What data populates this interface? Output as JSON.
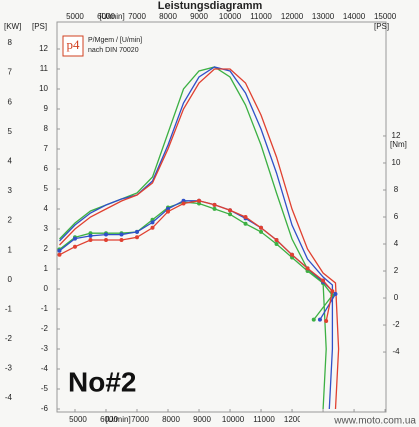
{
  "chart_data": {
    "type": "line",
    "title": "Leistungsdiagramm",
    "x_label": "[U/min]",
    "y_label": "[PS]",
    "kw_label": "[KW]",
    "y2_label": "[Nm]",
    "legend_logo": "p4",
    "legend_line1": "P/Mgem / [U/min]",
    "legend_line2": "nach DIN 70020",
    "annotation": "No#2",
    "watermark": "www.moto.com.ua",
    "xlim": [
      4420,
      15030
    ],
    "xticks": [
      5000,
      6000,
      7000,
      8000,
      9000,
      10000,
      11000,
      12000,
      13000,
      14000,
      15000
    ],
    "ylim": [
      -6.15,
      13.35
    ],
    "yticks": [
      12,
      11,
      10,
      9,
      8,
      7,
      6,
      5,
      4,
      3,
      2,
      1,
      0,
      -1,
      -2,
      -3,
      -4,
      -5,
      -6
    ],
    "kwlim": [
      -4.47,
      8.71
    ],
    "kwticks": [
      8,
      7,
      6,
      5,
      4,
      3,
      2,
      1,
      0,
      -1,
      -2,
      -3,
      -4
    ],
    "y2lim": [
      -8.44,
      20.44
    ],
    "y2ticks": [
      12,
      10,
      8,
      6,
      4,
      2,
      0,
      -2,
      -4
    ],
    "grid": false,
    "series": [
      {
        "color": "#3cb043",
        "axis": "y",
        "markers": false,
        "x": [
          4500,
          5000,
          5500,
          6000,
          6500,
          7000,
          7500,
          8000,
          8500,
          9000,
          9500,
          10000,
          10500,
          11000,
          11500,
          12000,
          12500,
          13000,
          13100,
          13000
        ],
        "values": [
          2.5,
          3.3,
          3.9,
          4.2,
          4.5,
          4.8,
          5.6,
          7.8,
          10,
          10.9,
          11.1,
          10.6,
          9.2,
          7.2,
          4.8,
          2.5,
          1,
          0.3,
          -3,
          -6
        ]
      },
      {
        "color": "#3050c8",
        "axis": "y",
        "markers": false,
        "x": [
          4500,
          5000,
          5500,
          6000,
          6500,
          7000,
          7500,
          8000,
          8500,
          9000,
          9500,
          10000,
          10500,
          11000,
          11500,
          12000,
          12500,
          13000,
          13300,
          13300,
          13200
        ],
        "values": [
          2.4,
          3.2,
          3.8,
          4.2,
          4.5,
          4.7,
          5.4,
          7.2,
          9.3,
          10.6,
          11.1,
          10.9,
          9.8,
          8,
          5.8,
          3.2,
          1.5,
          0.6,
          0.2,
          -3,
          -6
        ]
      },
      {
        "color": "#e04030",
        "axis": "y",
        "markers": false,
        "x": [
          4500,
          5000,
          5500,
          6000,
          6500,
          7000,
          7500,
          8000,
          8500,
          9000,
          9500,
          10000,
          10500,
          11000,
          11500,
          12000,
          12500,
          13000,
          13400,
          13500,
          13400
        ],
        "values": [
          2.2,
          3,
          3.6,
          4,
          4.4,
          4.7,
          5.3,
          7,
          9,
          10.3,
          11,
          11,
          10.3,
          8.7,
          6.6,
          4,
          2,
          0.8,
          0.3,
          -3,
          -6
        ]
      },
      {
        "color": "#3cb043",
        "axis": "y2",
        "markers": true,
        "x": [
          4500,
          5000,
          5500,
          6000,
          6500,
          7000,
          7500,
          8000,
          8500,
          9000,
          9500,
          10000,
          10500,
          11000,
          11500,
          12000,
          12500,
          13000,
          13300,
          12700
        ],
        "values": [
          3.6,
          4.5,
          4.8,
          4.8,
          4.8,
          4.9,
          5.8,
          6.7,
          7.1,
          7,
          6.6,
          6.2,
          5.5,
          4.9,
          4,
          3,
          2,
          1.1,
          0.2,
          -1.6
        ]
      },
      {
        "color": "#3050c8",
        "axis": "y2",
        "markers": true,
        "x": [
          4500,
          5000,
          5500,
          6000,
          6500,
          7000,
          7500,
          8000,
          8500,
          9000,
          9500,
          10000,
          10500,
          11000,
          11500,
          12000,
          12500,
          13000,
          13400,
          12900
        ],
        "values": [
          3.5,
          4.4,
          4.6,
          4.7,
          4.7,
          4.9,
          5.6,
          6.6,
          7.2,
          7.2,
          6.9,
          6.5,
          5.9,
          5.2,
          4.3,
          3.2,
          2.2,
          1.2,
          0.3,
          -1.6
        ]
      },
      {
        "color": "#e04030",
        "axis": "y2",
        "markers": true,
        "x": [
          4500,
          5000,
          5500,
          6000,
          6500,
          7000,
          7500,
          8000,
          8500,
          9000,
          9500,
          10000,
          10500,
          11000,
          11500,
          12000,
          12500,
          13000,
          13300,
          13100
        ],
        "values": [
          3.2,
          3.8,
          4.3,
          4.3,
          4.3,
          4.5,
          5.2,
          6.4,
          7,
          7.2,
          6.9,
          6.5,
          6,
          5.2,
          4.3,
          3.2,
          2.2,
          1.3,
          0.5,
          -1.7
        ]
      }
    ]
  }
}
